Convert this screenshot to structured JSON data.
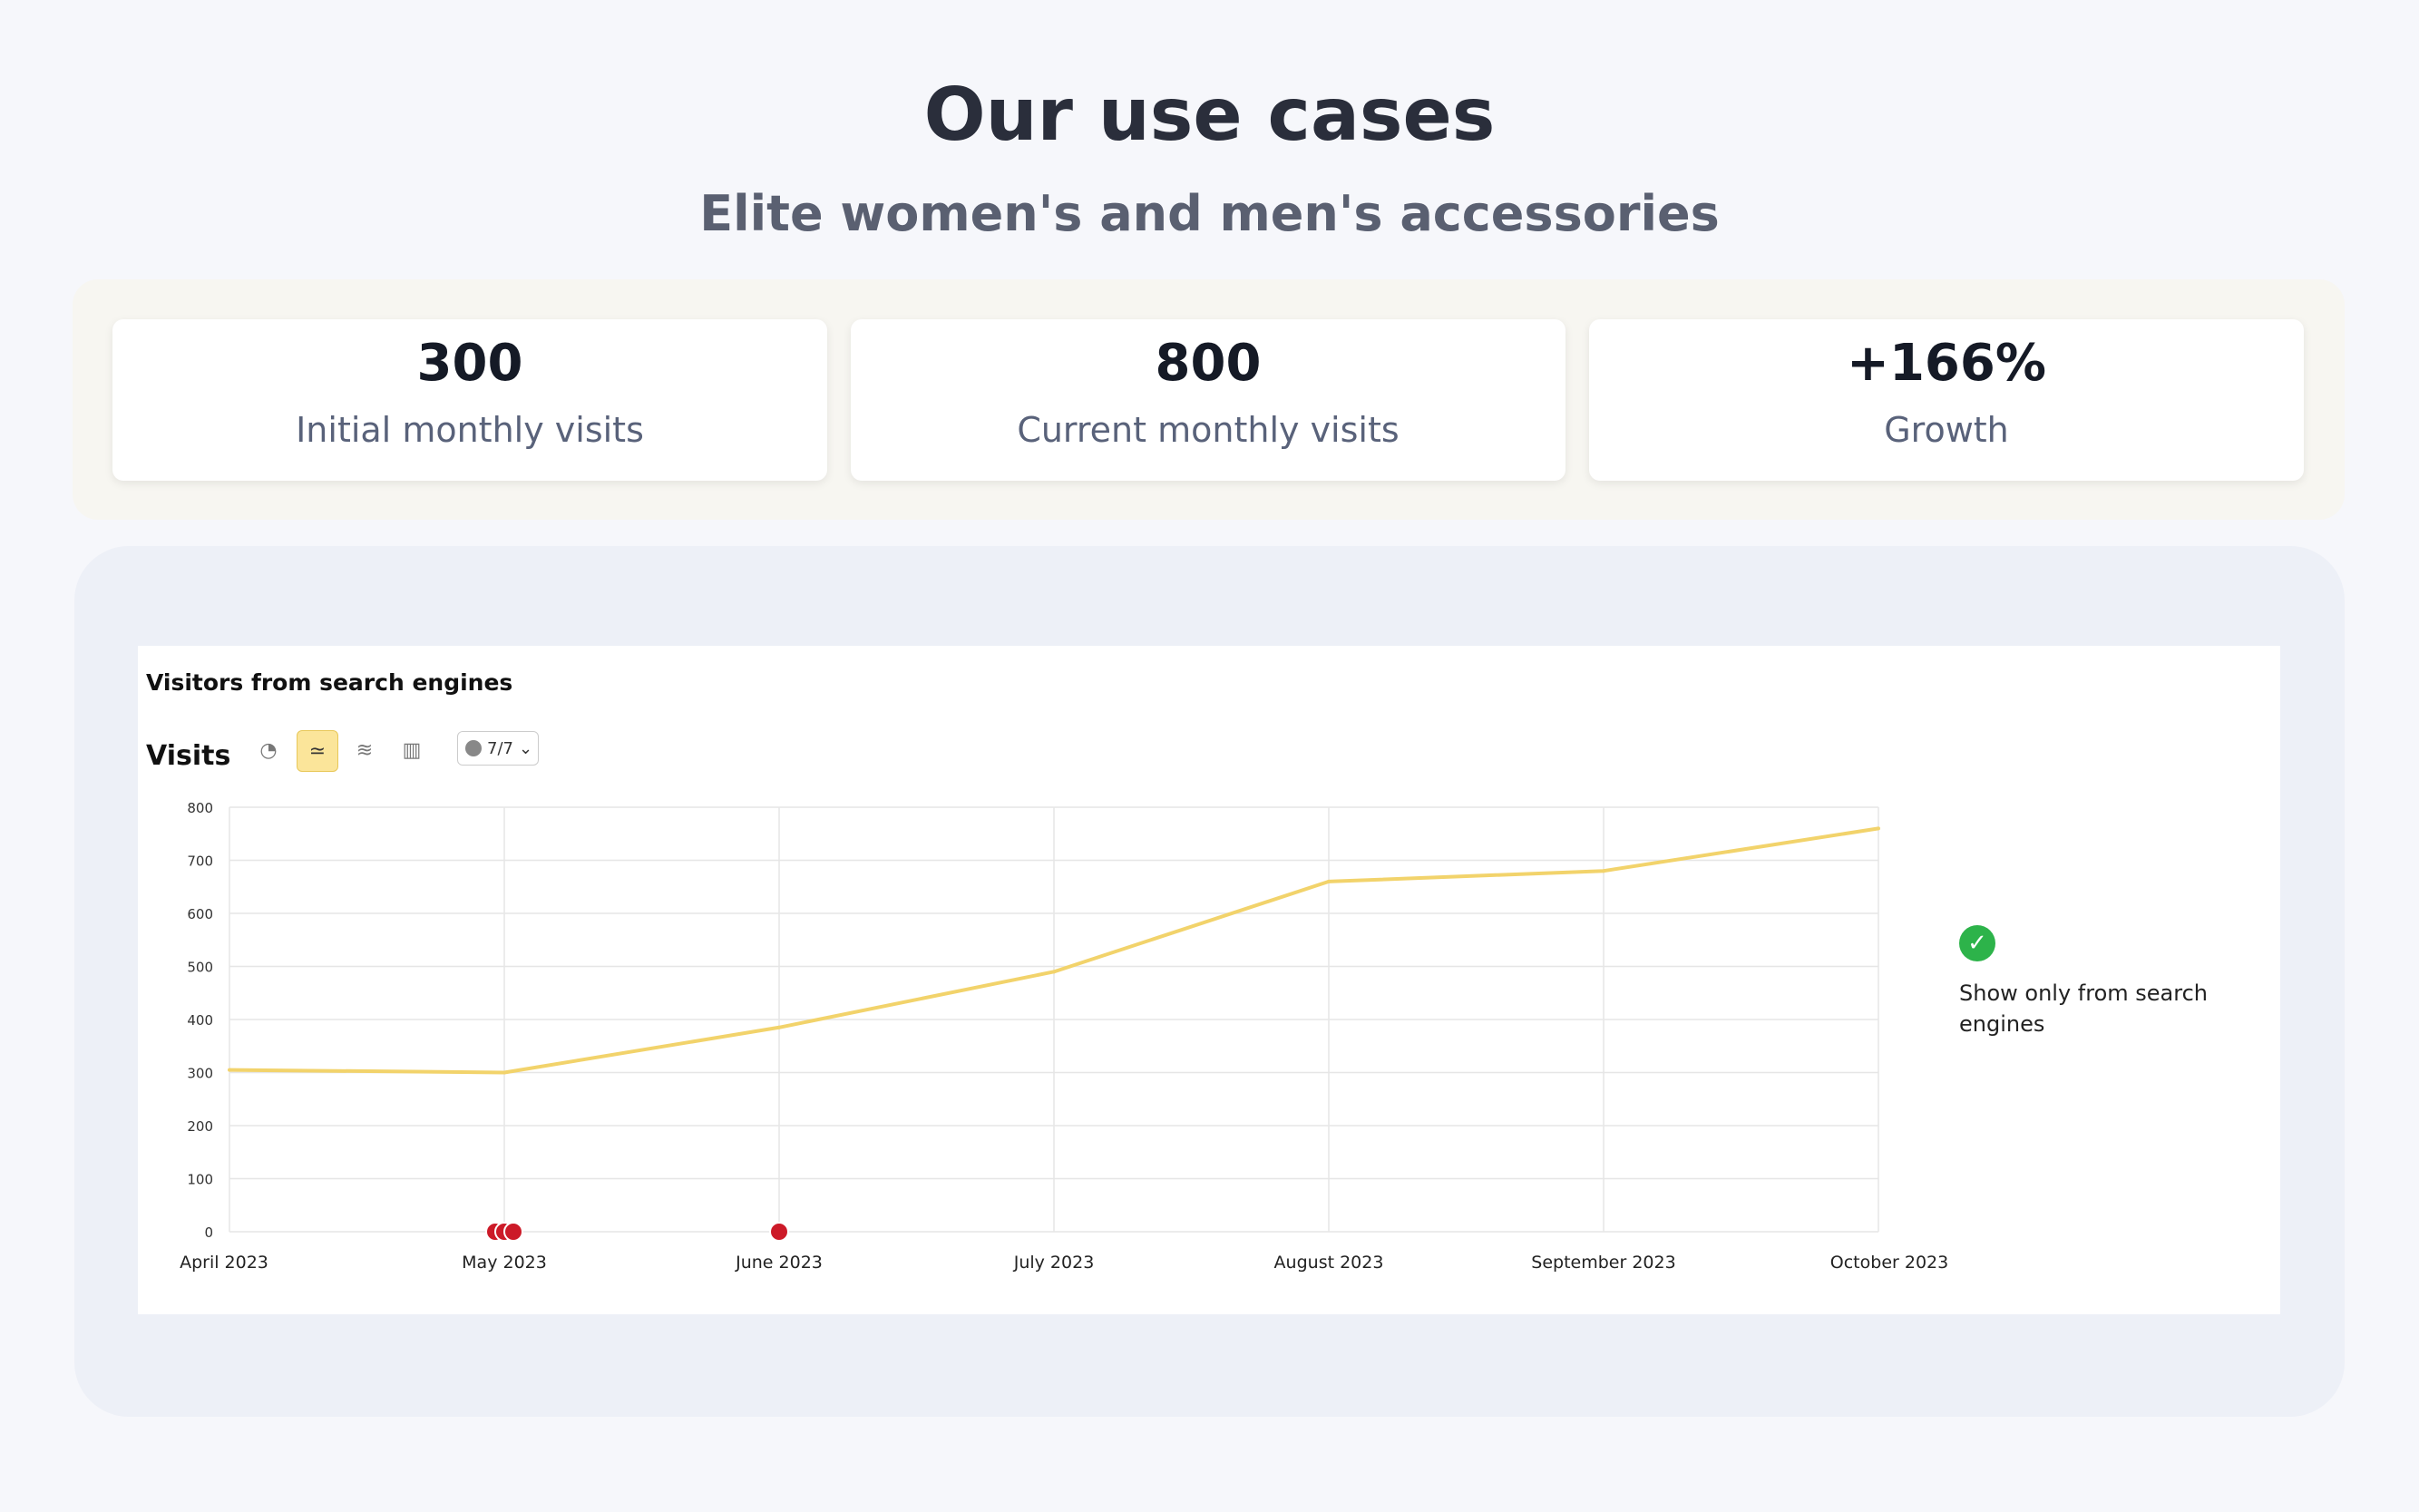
{
  "header": {
    "title": "Our use cases",
    "subtitle": "Elite women's and men's accessories"
  },
  "stats": [
    {
      "value": "300",
      "label": "Initial monthly visits"
    },
    {
      "value": "800",
      "label": "Current monthly visits"
    },
    {
      "value": "+166%",
      "label": "Growth"
    }
  ],
  "panel": {
    "heading": "Visitors from search engines",
    "metric_label": "Visits",
    "toolbar": {
      "icons": [
        "pie-chart-icon",
        "line-chart-icon",
        "stacked-area-icon",
        "bar-chart-icon"
      ],
      "active": "line-chart-icon",
      "notes_count": "7/7"
    },
    "filter": {
      "label": "Show only from search engines",
      "checked": true,
      "color": "#2db34a"
    }
  },
  "chart_data": {
    "type": "line",
    "x": [
      "April 2023",
      "May 2023",
      "June 2023",
      "July 2023",
      "August 2023",
      "September 2023",
      "October 2023"
    ],
    "series": [
      {
        "values": [
          305,
          300,
          385,
          490,
          660,
          680,
          760
        ],
        "color": "#f2d36b"
      }
    ],
    "yticks": [
      0,
      100,
      200,
      300,
      400,
      500,
      600,
      700,
      800
    ],
    "ylim": [
      0,
      800
    ],
    "grid": true,
    "annotations": [
      {
        "x": "May 2023",
        "count": 3
      },
      {
        "x": "June 2023",
        "count": 1
      }
    ]
  }
}
